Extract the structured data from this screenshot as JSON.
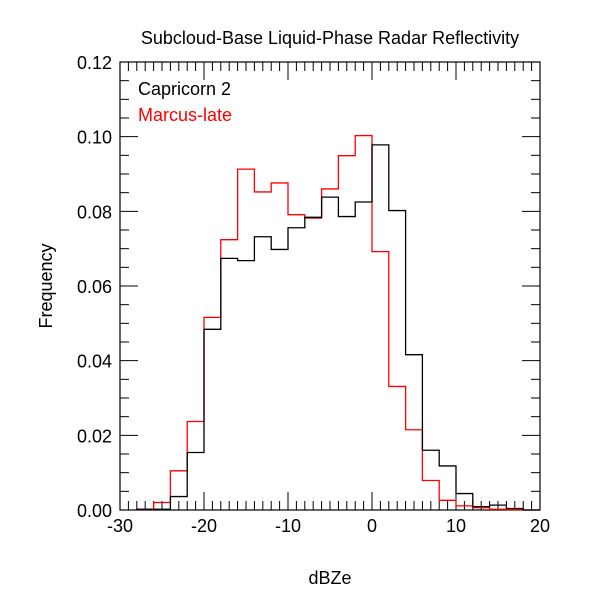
{
  "chart_data": {
    "type": "histogram-step",
    "title": "Subcloud-Base Liquid-Phase Radar Reflectivity",
    "xlabel": "dBZe",
    "ylabel": "Frequency",
    "xlim": [
      -30,
      20
    ],
    "ylim": [
      0,
      0.12
    ],
    "xticks": [
      "-30",
      "-20",
      "-10",
      "0",
      "10",
      "20"
    ],
    "yticks": [
      "0.00",
      "0.02",
      "0.04",
      "0.06",
      "0.08",
      "0.10",
      "0.12"
    ],
    "legend_placement": "top-left",
    "bin_edges": [
      -28,
      -26,
      -24,
      -22,
      -20,
      -18,
      -16,
      -14,
      -12,
      -10,
      -8,
      -6,
      -4,
      -2,
      0,
      2,
      4,
      6,
      8,
      10,
      12,
      14,
      16,
      18,
      20
    ],
    "series": [
      {
        "name": "Capricorn 2",
        "color": "#000000",
        "values": [
          0.0002,
          0.0002,
          0.0036,
          0.0154,
          0.0484,
          0.0674,
          0.0668,
          0.0732,
          0.0698,
          0.0756,
          0.0784,
          0.0838,
          0.0786,
          0.0825,
          0.0978,
          0.0802,
          0.0416,
          0.016,
          0.0118,
          0.0044,
          0.0009,
          0.0013,
          0.0004,
          0.0
        ]
      },
      {
        "name": "Marcus-late",
        "color": "#ff0000",
        "values": [
          0.0002,
          0.002,
          0.0105,
          0.0237,
          0.0516,
          0.0724,
          0.0913,
          0.0852,
          0.0876,
          0.0791,
          0.0782,
          0.086,
          0.0949,
          0.1003,
          0.0692,
          0.0331,
          0.0215,
          0.0079,
          0.0026,
          0.0011,
          0.0006,
          0.0002,
          0.0001,
          0.0
        ]
      }
    ]
  }
}
